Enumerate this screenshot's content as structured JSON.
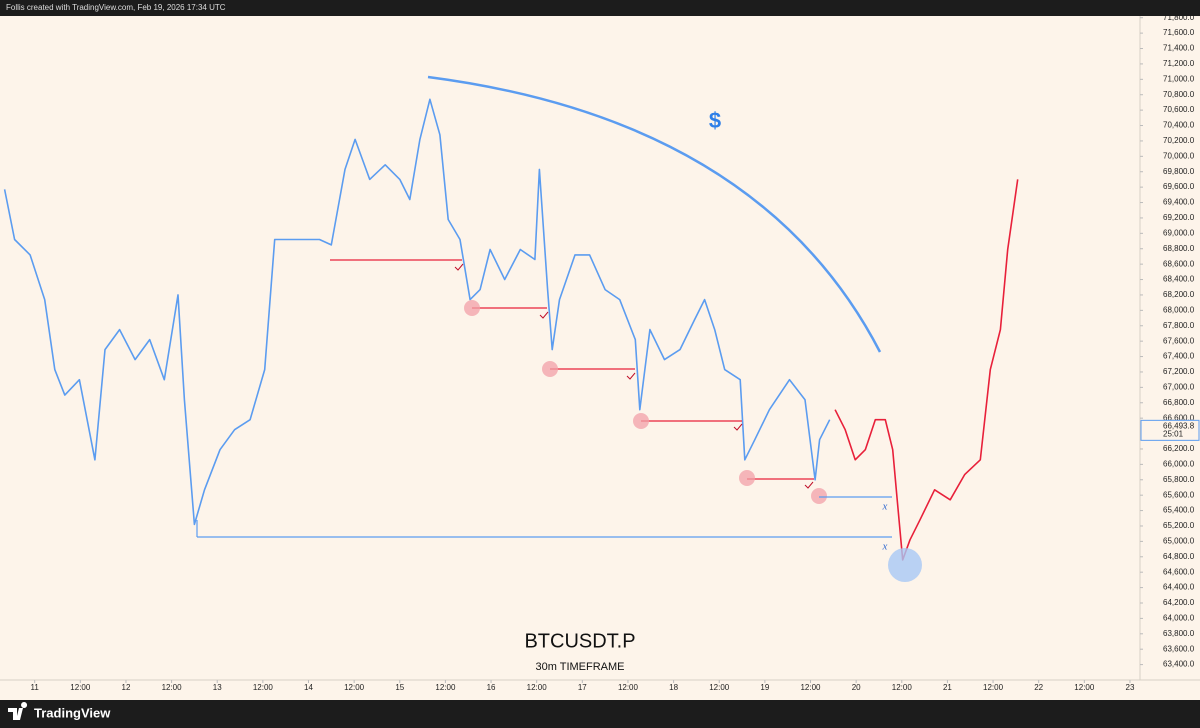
{
  "header": "Follis created with TradingView.com, Feb 19, 2026 17:34 UTC",
  "brand": "TradingView",
  "chart_data": {
    "type": "line",
    "title": "BTCUSDT.P",
    "subtitle": "30m TIMEFRAME",
    "annotations": {
      "dollar": "$",
      "mark_upper": "x",
      "mark_lower": "x"
    },
    "last_price": {
      "value": 66493.8,
      "label": "66,493.8"
    },
    "countdown": "25:01",
    "xlim": [
      10.62,
      23.11
    ],
    "ylim": [
      63200,
      72030
    ],
    "xticks": [
      {
        "value": 11,
        "label": "11"
      },
      {
        "value": 11.5,
        "label": "12:00"
      },
      {
        "value": 12,
        "label": "12"
      },
      {
        "value": 12.5,
        "label": "12:00"
      },
      {
        "value": 13,
        "label": "13"
      },
      {
        "value": 13.5,
        "label": "12:00"
      },
      {
        "value": 14,
        "label": "14"
      },
      {
        "value": 14.5,
        "label": "12:00"
      },
      {
        "value": 15,
        "label": "15"
      },
      {
        "value": 15.5,
        "label": "12:00"
      },
      {
        "value": 16,
        "label": "16"
      },
      {
        "value": 16.5,
        "label": "12:00"
      },
      {
        "value": 17,
        "label": "17"
      },
      {
        "value": 17.5,
        "label": "12:00"
      },
      {
        "value": 18,
        "label": "18"
      },
      {
        "value": 18.5,
        "label": "12:00"
      },
      {
        "value": 19,
        "label": "19"
      },
      {
        "value": 19.5,
        "label": "12:00"
      },
      {
        "value": 20,
        "label": "20"
      },
      {
        "value": 20.5,
        "label": "12:00"
      },
      {
        "value": 21,
        "label": "21"
      },
      {
        "value": 21.5,
        "label": "12:00"
      },
      {
        "value": 22,
        "label": "22"
      },
      {
        "value": 22.5,
        "label": "12:00"
      },
      {
        "value": 23,
        "label": "23"
      }
    ],
    "yticks": [
      {
        "value": 63400,
        "label": "63,400.0"
      },
      {
        "value": 63600,
        "label": "63,600.0"
      },
      {
        "value": 63800,
        "label": "63,800.0"
      },
      {
        "value": 64000,
        "label": "64,000.0"
      },
      {
        "value": 64200,
        "label": "64,200.0"
      },
      {
        "value": 64400,
        "label": "64,400.0"
      },
      {
        "value": 64600,
        "label": "64,600.0"
      },
      {
        "value": 64800,
        "label": "64,800.0"
      },
      {
        "value": 65000,
        "label": "65,000.0"
      },
      {
        "value": 65200,
        "label": "65,200.0"
      },
      {
        "value": 65400,
        "label": "65,400.0"
      },
      {
        "value": 65600,
        "label": "65,600.0"
      },
      {
        "value": 65800,
        "label": "65,800.0"
      },
      {
        "value": 66000,
        "label": "66,000.0"
      },
      {
        "value": 66200,
        "label": "66,200.0"
      },
      {
        "value": 66600,
        "label": "66,600.0"
      },
      {
        "value": 66800,
        "label": "66,800.0"
      },
      {
        "value": 67000,
        "label": "67,000.0"
      },
      {
        "value": 67200,
        "label": "67,200.0"
      },
      {
        "value": 67400,
        "label": "67,400.0"
      },
      {
        "value": 67600,
        "label": "67,600.0"
      },
      {
        "value": 67800,
        "label": "67,800.0"
      },
      {
        "value": 68000,
        "label": "68,000.0"
      },
      {
        "value": 68200,
        "label": "68,200.0"
      },
      {
        "value": 68400,
        "label": "68,400.0"
      },
      {
        "value": 68600,
        "label": "68,600.0"
      },
      {
        "value": 68800,
        "label": "68,800.0"
      },
      {
        "value": 69000,
        "label": "69,000.0"
      },
      {
        "value": 69200,
        "label": "69,200.0"
      },
      {
        "value": 69400,
        "label": "69,400.0"
      },
      {
        "value": 69600,
        "label": "69,600.0"
      },
      {
        "value": 69800,
        "label": "69,800.0"
      },
      {
        "value": 70000,
        "label": "70,000.0"
      },
      {
        "value": 70200,
        "label": "70,200.0"
      },
      {
        "value": 70400,
        "label": "70,400.0"
      },
      {
        "value": 70600,
        "label": "70,600.0"
      },
      {
        "value": 70800,
        "label": "70,800.0"
      },
      {
        "value": 71000,
        "label": "71,000.0"
      },
      {
        "value": 71200,
        "label": "71,200.0"
      },
      {
        "value": 71400,
        "label": "71,400.0"
      },
      {
        "value": 71600,
        "label": "71,600.0"
      },
      {
        "value": 71800,
        "label": "71,800.0"
      }
    ],
    "series": [
      {
        "color": "#5b9cf0",
        "x": [
          10.67,
          10.78,
          10.95,
          11.11,
          11.22,
          11.33,
          11.49,
          11.66,
          11.77,
          11.93,
          12.1,
          12.26,
          12.42,
          12.57,
          12.64,
          12.75,
          12.86,
          13.03,
          13.19,
          13.36,
          13.52,
          13.63,
          13.79,
          13.96,
          14.12,
          14.25,
          14.4,
          14.51,
          14.67,
          14.84,
          15.0,
          15.11,
          15.22,
          15.33,
          15.44,
          15.53,
          15.66,
          15.77,
          15.88,
          15.99,
          16.15,
          16.32,
          16.48,
          16.53,
          16.62,
          16.67,
          16.75,
          16.92,
          17.08,
          17.25,
          17.41,
          17.58,
          17.63,
          17.74,
          17.9,
          18.07,
          18.23,
          18.34,
          18.45,
          18.56,
          18.73,
          18.78,
          18.89,
          19.05,
          19.27,
          19.44,
          19.55,
          19.6,
          19.71
        ],
        "values": [
          69570,
          68920,
          68720,
          68140,
          67230,
          66900,
          67100,
          66060,
          67490,
          67750,
          67360,
          67620,
          67100,
          68200,
          66840,
          65220,
          65670,
          66190,
          66450,
          66580,
          67230,
          68920,
          68920,
          68920,
          68920,
          68850,
          69830,
          70220,
          69700,
          69890,
          69700,
          69440,
          70220,
          70740,
          70280,
          69180,
          68920,
          68140,
          68270,
          68790,
          68400,
          68790,
          68660,
          69830,
          68270,
          67490,
          68140,
          68720,
          68720,
          68270,
          68140,
          67620,
          66710,
          67750,
          67360,
          67490,
          67880,
          68140,
          67750,
          67230,
          67100,
          66060,
          66320,
          66710,
          67100,
          66840,
          65800,
          66320,
          66580
        ]
      },
      {
        "color": "#e8203a",
        "x": [
          19.77,
          19.88,
          19.99,
          20.1,
          20.21,
          20.32,
          20.4,
          20.45,
          20.51,
          20.59,
          20.7,
          20.86,
          21.03,
          21.19,
          21.36,
          21.47,
          21.58,
          21.66,
          21.77
        ],
        "values": [
          66710,
          66450,
          66060,
          66190,
          66580,
          66580,
          66190,
          65540,
          64760,
          65020,
          65280,
          65670,
          65540,
          65870,
          66060,
          67230,
          67750,
          68790,
          69700
        ]
      }
    ]
  }
}
